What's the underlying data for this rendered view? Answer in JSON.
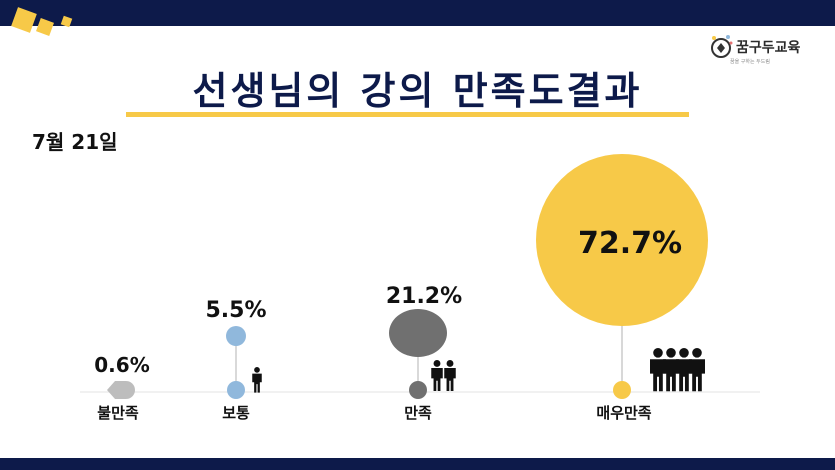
{
  "header": {
    "brand": "꿈구두교육",
    "brand_sub": "꿈을 구하는 두드림",
    "title": "선생님의 강의 만족도결과",
    "date": "7월 21일"
  },
  "colors": {
    "navy": "#0d1a4a",
    "accent_yellow": "#f7c948"
  },
  "chart_data": {
    "type": "bubble",
    "title": "선생님의 강의 만족도결과",
    "subtitle": "7월 21일",
    "categories": [
      "불만족",
      "보통",
      "만족",
      "매우만족"
    ],
    "values": [
      0.6,
      5.5,
      21.2,
      72.7
    ],
    "labels": [
      "0.6%",
      "5.5%",
      "21.2%",
      "72.7%"
    ],
    "unit": "%",
    "colors": [
      "#bdbdbd",
      "#90b8dc",
      "#707070",
      "#f7c948"
    ],
    "people_icons": [
      0,
      1,
      2,
      4
    ]
  }
}
